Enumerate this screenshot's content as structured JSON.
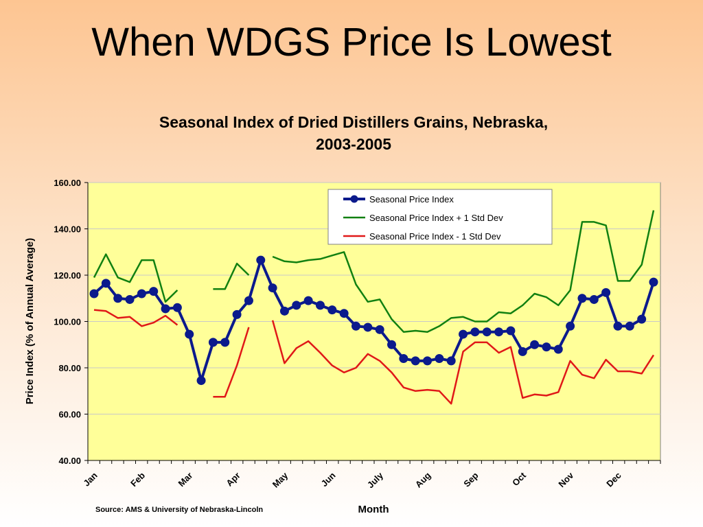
{
  "slide": {
    "title": "When WDGS Price Is Lowest",
    "source": "Source:  AMS & University of Nebraska-Lincoln"
  },
  "chart_data": {
    "type": "line",
    "title_line1": "Seasonal Index of Dried Distillers Grains, Nebraska,",
    "title_line2": "2003-2005",
    "xlabel": "Month",
    "ylabel": "Price Index (% of Annual Average)",
    "ylim": [
      40,
      160
    ],
    "yticks": [
      "40.00",
      "60.00",
      "80.00",
      "100.00",
      "120.00",
      "140.00",
      "160.00"
    ],
    "month_labels": [
      "Jan",
      "Feb",
      "Mar",
      "Apr",
      "May",
      "Jun",
      "July",
      "Aug",
      "Sep",
      "Oct",
      "Nov",
      "Dec"
    ],
    "points_per_month": 4,
    "grid": true,
    "legend_position": "top-right",
    "series": [
      {
        "name": "Seasonal Price Index",
        "color": "#0b1a8c",
        "marker": "circle",
        "values": [
          112,
          116.5,
          110,
          109.5,
          112,
          113,
          105.5,
          106,
          94.5,
          74.5,
          91,
          91,
          103,
          109,
          126.5,
          114.5,
          104.5,
          107,
          109,
          107,
          105,
          103.5,
          98,
          97.5,
          96.5,
          90,
          84,
          83,
          83,
          84,
          83,
          94.5,
          95.5,
          95.5,
          95.5,
          96,
          87,
          90,
          89,
          88,
          98,
          110,
          109.5,
          112.5,
          98,
          98,
          101,
          117
        ]
      },
      {
        "name": "Seasonal Price Index + 1 Std Dev",
        "color": "#118011",
        "marker": "none",
        "values": [
          119,
          129,
          119,
          117,
          126.5,
          126.5,
          108.5,
          113.5,
          null,
          null,
          114,
          114,
          125,
          120,
          null,
          128,
          126,
          125.5,
          126.5,
          127,
          128.5,
          130,
          116,
          108.5,
          109.5,
          101,
          95.5,
          96,
          95.5,
          98,
          101.5,
          102,
          100,
          100,
          104,
          103.5,
          107,
          112,
          110.5,
          107,
          113.5,
          143,
          143,
          141.5,
          117.5,
          117.5,
          124.5,
          148
        ]
      },
      {
        "name": "Seasonal Price Index - 1 Std Dev",
        "color": "#e01818",
        "marker": "none",
        "values": [
          105,
          104.5,
          101.5,
          102,
          98,
          99.5,
          102.5,
          98.5,
          null,
          null,
          67.5,
          67.5,
          81,
          97.5,
          null,
          100.5,
          82,
          88.5,
          91.5,
          86.5,
          81,
          78,
          80,
          86,
          83,
          78,
          71.5,
          70,
          70.5,
          70,
          64.5,
          87,
          91,
          91,
          86.5,
          89,
          67,
          68.5,
          68,
          69.5,
          83,
          77,
          75.5,
          83.5,
          78.5,
          78.5,
          77.5,
          85.5
        ]
      }
    ]
  }
}
